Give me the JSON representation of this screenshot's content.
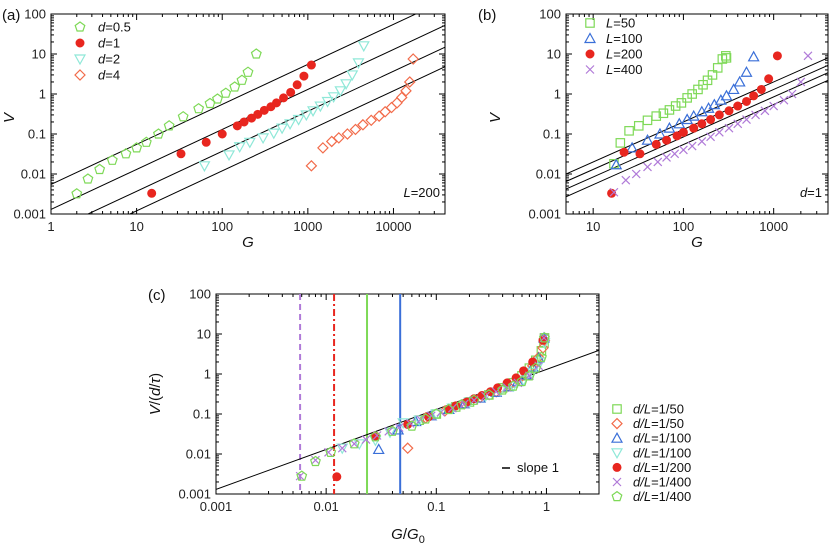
{
  "chart_data": [
    {
      "panel_label": "(a)",
      "type": "scatter",
      "xscale": "log",
      "yscale": "log",
      "xlim": [
        1,
        40000
      ],
      "ylim": [
        0.001,
        100
      ],
      "xlabel": "G",
      "ylabel": "V",
      "xticks": [
        {
          "v": 1,
          "t": "1"
        },
        {
          "v": 10,
          "t": "10"
        },
        {
          "v": 100,
          "t": "100"
        },
        {
          "v": 1000,
          "t": "1000"
        },
        {
          "v": 10000,
          "t": "10000"
        }
      ],
      "yticks": [
        {
          "v": 0.001,
          "t": "0.001"
        },
        {
          "v": 0.01,
          "t": "0.01"
        },
        {
          "v": 0.1,
          "t": "0.1"
        },
        {
          "v": 1,
          "t": "1"
        },
        {
          "v": 10,
          "t": "10"
        },
        {
          "v": 100,
          "t": "100"
        }
      ],
      "annotation": {
        "prefix": "L",
        "text": "=200"
      },
      "legend_position": "top-left",
      "slope_lines": [
        {
          "x": [
            1,
            40000
          ],
          "y": [
            0.0055,
            220
          ]
        },
        {
          "x": [
            1,
            40000
          ],
          "y": [
            0.0013,
            52
          ]
        },
        {
          "x": [
            1,
            40000
          ],
          "y": [
            0.00037,
            14.8
          ]
        },
        {
          "x": [
            1,
            40000
          ],
          "y": [
            0.00012,
            4.8
          ]
        }
      ],
      "series": [
        {
          "prefix": "d",
          "label": "=0.5",
          "color": "#7ed957",
          "marker": "pentagon",
          "x": [
            2,
            2.7,
            3.7,
            5.2,
            7.5,
            10,
            13,
            18,
            24,
            35,
            53,
            72,
            88,
            110,
            140,
            170,
            200,
            250
          ],
          "y": [
            0.0032,
            0.0075,
            0.013,
            0.022,
            0.032,
            0.045,
            0.062,
            0.1,
            0.16,
            0.27,
            0.43,
            0.58,
            0.75,
            1.05,
            1.5,
            2.2,
            3.5,
            10
          ]
        },
        {
          "prefix": "d",
          "label": "=1",
          "color": "#e8261f",
          "marker": "circle",
          "x": [
            15,
            33,
            65,
            100,
            150,
            180,
            220,
            260,
            310,
            370,
            430,
            520,
            630,
            750,
            900,
            1100
          ],
          "y": [
            0.0033,
            0.032,
            0.062,
            0.1,
            0.16,
            0.2,
            0.25,
            0.31,
            0.39,
            0.48,
            0.6,
            0.8,
            1.1,
            1.7,
            2.8,
            5.3
          ]
        },
        {
          "prefix": "d",
          "label": "=2",
          "color": "#8fe8d8",
          "marker": "triangle-down",
          "x": [
            62,
            120,
            160,
            210,
            300,
            400,
            500,
            620,
            780,
            960,
            1150,
            1400,
            1700,
            2000,
            2400,
            2800,
            3300,
            3900,
            4500
          ],
          "y": [
            0.016,
            0.03,
            0.048,
            0.062,
            0.08,
            0.105,
            0.14,
            0.18,
            0.23,
            0.3,
            0.38,
            0.5,
            0.65,
            0.85,
            1.2,
            1.8,
            3,
            6,
            16
          ]
        },
        {
          "prefix": "d",
          "label": "=4",
          "color": "#f26b4a",
          "marker": "diamond",
          "x": [
            1100,
            1500,
            1900,
            2300,
            2900,
            3600,
            4400,
            5500,
            6800,
            8000,
            9500,
            11000,
            12500,
            14000,
            15500,
            17000
          ],
          "y": [
            0.016,
            0.045,
            0.065,
            0.08,
            0.1,
            0.13,
            0.17,
            0.22,
            0.28,
            0.36,
            0.46,
            0.6,
            0.82,
            1.2,
            2,
            7.5
          ]
        }
      ]
    },
    {
      "panel_label": "(b)",
      "type": "scatter",
      "xscale": "log",
      "yscale": "log",
      "xlim": [
        5,
        4000
      ],
      "ylim": [
        0.001,
        100
      ],
      "xlabel": "G",
      "ylabel": "V",
      "xticks": [
        {
          "v": 10,
          "t": "10"
        },
        {
          "v": 100,
          "t": "100"
        },
        {
          "v": 1000,
          "t": "1000"
        }
      ],
      "yticks": [
        {
          "v": 0.001,
          "t": "0.001"
        },
        {
          "v": 0.01,
          "t": "0.01"
        },
        {
          "v": 0.1,
          "t": "0.1"
        },
        {
          "v": 1,
          "t": "1"
        },
        {
          "v": 10,
          "t": "10"
        },
        {
          "v": 100,
          "t": "100"
        }
      ],
      "annotation": {
        "prefix": "d",
        "text": "=1"
      },
      "legend_position": "top-left",
      "slope_lines": [
        {
          "x": [
            5,
            4000
          ],
          "y": [
            0.01,
            8
          ]
        },
        {
          "x": [
            5,
            4000
          ],
          "y": [
            0.0065,
            5.2
          ]
        },
        {
          "x": [
            5,
            4000
          ],
          "y": [
            0.0042,
            3.4
          ]
        },
        {
          "x": [
            5,
            4000
          ],
          "y": [
            0.0027,
            2.2
          ]
        }
      ],
      "series": [
        {
          "prefix": "L",
          "label": "=50",
          "color": "#7ed957",
          "marker": "square",
          "x": [
            17,
            20,
            25,
            32,
            40,
            50,
            60,
            70,
            82,
            95,
            110,
            125,
            145,
            165,
            185,
            210,
            240,
            270,
            295,
            300
          ],
          "y": [
            0.018,
            0.06,
            0.12,
            0.16,
            0.22,
            0.28,
            0.33,
            0.4,
            0.5,
            0.6,
            0.8,
            1.0,
            1.3,
            1.7,
            2.2,
            3.0,
            4.5,
            7.5,
            9,
            8
          ]
        },
        {
          "prefix": "L",
          "label": "=100",
          "color": "#3a6fd8",
          "marker": "triangle-up",
          "x": [
            18,
            27,
            40,
            55,
            70,
            90,
            110,
            130,
            160,
            190,
            220,
            260,
            300,
            360,
            420,
            500,
            600
          ],
          "y": [
            0.017,
            0.045,
            0.07,
            0.1,
            0.14,
            0.18,
            0.23,
            0.28,
            0.36,
            0.44,
            0.54,
            0.7,
            0.9,
            1.3,
            2.0,
            3.5,
            8.5
          ]
        },
        {
          "prefix": "L",
          "label": "=200",
          "color": "#e8261f",
          "marker": "circle",
          "x": [
            16,
            22,
            33,
            50,
            65,
            85,
            100,
            130,
            160,
            200,
            250,
            320,
            400,
            500,
            600,
            730,
            880,
            1100
          ],
          "y": [
            0.0033,
            0.035,
            0.032,
            0.055,
            0.07,
            0.09,
            0.11,
            0.14,
            0.18,
            0.23,
            0.3,
            0.38,
            0.5,
            0.65,
            0.9,
            1.3,
            2.4,
            9
          ]
        },
        {
          "prefix": "L",
          "label": "=400",
          "color": "#b07ad8",
          "marker": "cross",
          "x": [
            17,
            23,
            30,
            40,
            52,
            65,
            80,
            100,
            125,
            160,
            200,
            250,
            320,
            400,
            500,
            630,
            800,
            1000,
            1300,
            1600,
            2000,
            2400
          ],
          "y": [
            0.0035,
            0.007,
            0.01,
            0.015,
            0.02,
            0.026,
            0.032,
            0.04,
            0.05,
            0.065,
            0.085,
            0.11,
            0.14,
            0.18,
            0.23,
            0.3,
            0.38,
            0.5,
            0.7,
            1.0,
            2.0,
            9
          ]
        }
      ]
    },
    {
      "panel_label": "(c)",
      "type": "scatter",
      "xscale": "log",
      "yscale": "log",
      "xlim": [
        0.001,
        3
      ],
      "ylim": [
        0.001,
        100
      ],
      "xlabel_main": "G",
      "xlabel_div": "/",
      "xlabel_var": "G",
      "xlabel_sub": "0",
      "ylabel_var": "V",
      "ylabel_mid": "/(",
      "ylabel_d": "d",
      "ylabel_slash": "/",
      "ylabel_tau": "τ",
      "ylabel_close": ")",
      "xticks": [
        {
          "v": 0.001,
          "t": "0.001"
        },
        {
          "v": 0.01,
          "t": "0.01"
        },
        {
          "v": 0.1,
          "t": "0.1"
        },
        {
          "v": 1,
          "t": "1"
        }
      ],
      "yticks": [
        {
          "v": 0.001,
          "t": "0.001"
        },
        {
          "v": 0.01,
          "t": "0.01"
        },
        {
          "v": 0.1,
          "t": "0.1"
        },
        {
          "v": 1,
          "t": "1"
        },
        {
          "v": 10,
          "t": "10"
        },
        {
          "v": 100,
          "t": "100"
        }
      ],
      "slope_line": {
        "x": [
          0.001,
          3
        ],
        "y": [
          0.0013,
          3.9
        ],
        "label": "slope 1"
      },
      "vlines": [
        {
          "x": 0.0058,
          "color": "#b07ad8",
          "style": "dashed"
        },
        {
          "x": 0.0118,
          "color": "#e8261f",
          "style": "dashdot"
        },
        {
          "x": 0.0235,
          "color": "#7ed957",
          "style": "solid"
        },
        {
          "x": 0.047,
          "color": "#3a6fd8",
          "style": "solid"
        }
      ],
      "legend_position": "right",
      "series": [
        {
          "prefix": "d/L",
          "label": "=1/50",
          "color": "#7ed957",
          "marker": "square",
          "x": [
            0.07,
            0.1,
            0.15,
            0.2,
            0.3,
            0.4,
            0.5,
            0.6,
            0.7,
            0.8,
            0.9,
            0.95,
            0.96
          ],
          "y": [
            0.07,
            0.1,
            0.15,
            0.2,
            0.3,
            0.45,
            0.6,
            0.9,
            1.4,
            2.2,
            3.8,
            6,
            8
          ]
        },
        {
          "prefix": "d/L",
          "label": "=1/50",
          "color": "#f26b4a",
          "marker": "diamond",
          "x": [
            0.055,
            0.08,
            0.12,
            0.18,
            0.25,
            0.35,
            0.45,
            0.55,
            0.65,
            0.75,
            0.85,
            0.93,
            0.96
          ],
          "y": [
            0.014,
            0.08,
            0.12,
            0.18,
            0.26,
            0.36,
            0.5,
            0.7,
            1.0,
            1.6,
            2.6,
            4.5,
            7
          ]
        },
        {
          "prefix": "d/L",
          "label": "=1/100",
          "color": "#3a6fd8",
          "marker": "triangle-up",
          "x": [
            0.03,
            0.045,
            0.065,
            0.09,
            0.13,
            0.18,
            0.25,
            0.35,
            0.45,
            0.55,
            0.65,
            0.75,
            0.85,
            0.95
          ],
          "y": [
            0.013,
            0.04,
            0.065,
            0.09,
            0.13,
            0.18,
            0.25,
            0.35,
            0.48,
            0.65,
            0.95,
            1.5,
            2.5,
            8
          ]
        },
        {
          "prefix": "d/L",
          "label": "=1/100",
          "color": "#8fe8d8",
          "marker": "triangle-down",
          "x": [
            0.014,
            0.02,
            0.028,
            0.038,
            0.05,
            0.07,
            0.1,
            0.14,
            0.2,
            0.28,
            0.38,
            0.5,
            0.62,
            0.75,
            0.88,
            0.96
          ],
          "y": [
            0.014,
            0.018,
            0.022,
            0.035,
            0.06,
            0.07,
            0.1,
            0.14,
            0.2,
            0.28,
            0.38,
            0.5,
            0.7,
            1.1,
            2.0,
            6
          ]
        },
        {
          "prefix": "d/L",
          "label": "=1/200",
          "color": "#e8261f",
          "marker": "circle",
          "x": [
            0.0125,
            0.028,
            0.055,
            0.085,
            0.13,
            0.15,
            0.19,
            0.22,
            0.26,
            0.31,
            0.36,
            0.44,
            0.53,
            0.62,
            0.75,
            0.93
          ],
          "y": [
            0.0027,
            0.028,
            0.055,
            0.085,
            0.13,
            0.16,
            0.2,
            0.24,
            0.29,
            0.36,
            0.45,
            0.6,
            0.8,
            1.2,
            2.0,
            7
          ]
        },
        {
          "prefix": "d/L",
          "label": "=1/400",
          "color": "#b07ad8",
          "marker": "cross",
          "x": [
            0.0058,
            0.008,
            0.0105,
            0.014,
            0.018,
            0.023,
            0.029,
            0.037,
            0.046,
            0.058,
            0.072,
            0.09,
            0.11,
            0.14,
            0.18,
            0.22,
            0.28,
            0.35,
            0.44,
            0.55,
            0.7,
            0.85,
            0.95
          ],
          "y": [
            0.0028,
            0.007,
            0.011,
            0.014,
            0.018,
            0.023,
            0.029,
            0.037,
            0.046,
            0.058,
            0.072,
            0.09,
            0.11,
            0.14,
            0.18,
            0.22,
            0.28,
            0.36,
            0.46,
            0.6,
            0.9,
            1.6,
            8
          ]
        },
        {
          "prefix": "d/L",
          "label": "=1/400",
          "color": "#7ed957",
          "marker": "pentagon",
          "x": [
            0.006,
            0.008,
            0.011,
            0.018,
            0.028,
            0.04,
            0.06,
            0.08,
            0.1,
            0.13,
            0.17,
            0.22,
            0.3,
            0.4,
            0.5,
            0.6,
            0.7,
            0.8,
            0.9,
            0.96
          ],
          "y": [
            0.0028,
            0.0065,
            0.011,
            0.018,
            0.027,
            0.037,
            0.05,
            0.075,
            0.1,
            0.13,
            0.17,
            0.22,
            0.3,
            0.4,
            0.5,
            0.65,
            0.9,
            1.4,
            2.6,
            8
          ]
        }
      ]
    }
  ]
}
